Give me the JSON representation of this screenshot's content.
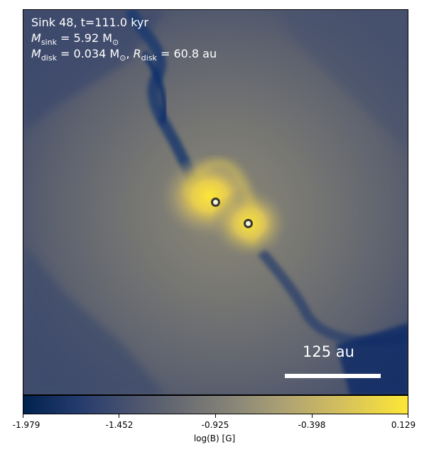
{
  "panel": {
    "annotation_line1": "Sink 48, t=111.0 kyr",
    "annotation_line2_var": "M",
    "annotation_line2_sub": "sink",
    "annotation_line2_rest": " = 5.92 M",
    "annotation_line2_sun": "⊙",
    "annotation_line3_var": "M",
    "annotation_line3_sub": "disk",
    "annotation_line3_mid": " = 0.034 M",
    "annotation_line3_sun": "⊙",
    "annotation_line3_sep": ", ",
    "annotation_line3_var2": "R",
    "annotation_line3_sub2": "disk",
    "annotation_line3_rest": " = 60.8 au",
    "scalebar_label": "125 au"
  },
  "colorbar": {
    "colormap": "cividis",
    "label": "log(B) [G]",
    "ticks": [
      "-1.979",
      "-1.452",
      "-0.925",
      "-0.398",
      "0.129"
    ],
    "min": -1.979,
    "max": 0.129
  }
}
